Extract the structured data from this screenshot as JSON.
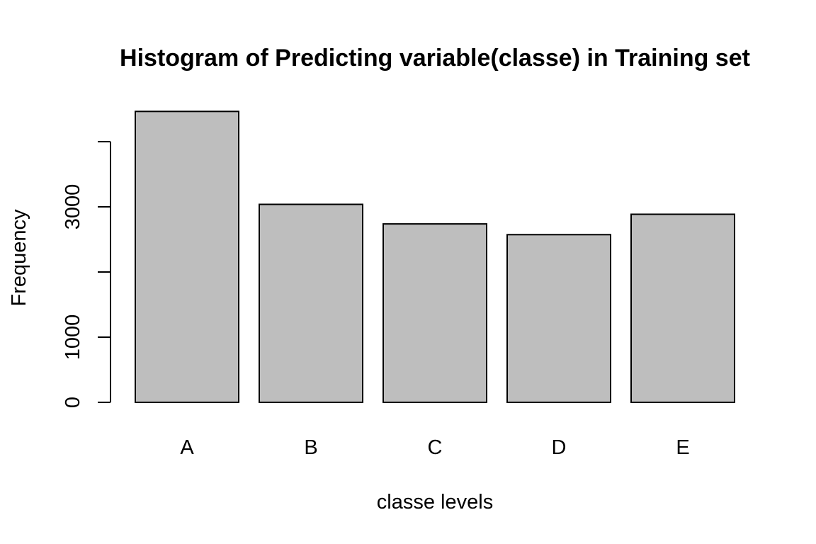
{
  "chart_data": {
    "type": "bar",
    "title": "Histogram of Predicting variable(classe) in Training set",
    "xlabel": "classe levels",
    "ylabel": "Frequency",
    "categories": [
      "A",
      "B",
      "C",
      "D",
      "E"
    ],
    "values": [
      4464,
      3038,
      2738,
      2573,
      2886
    ],
    "ylim": [
      0,
      4464
    ],
    "yticks": [
      0,
      1000,
      2000,
      3000,
      4000
    ],
    "ytick_labels": [
      "0",
      "1000",
      "",
      "3000",
      ""
    ],
    "grid": false,
    "colors": {
      "bar_fill": "#bebebe",
      "bar_stroke": "#000000"
    }
  }
}
